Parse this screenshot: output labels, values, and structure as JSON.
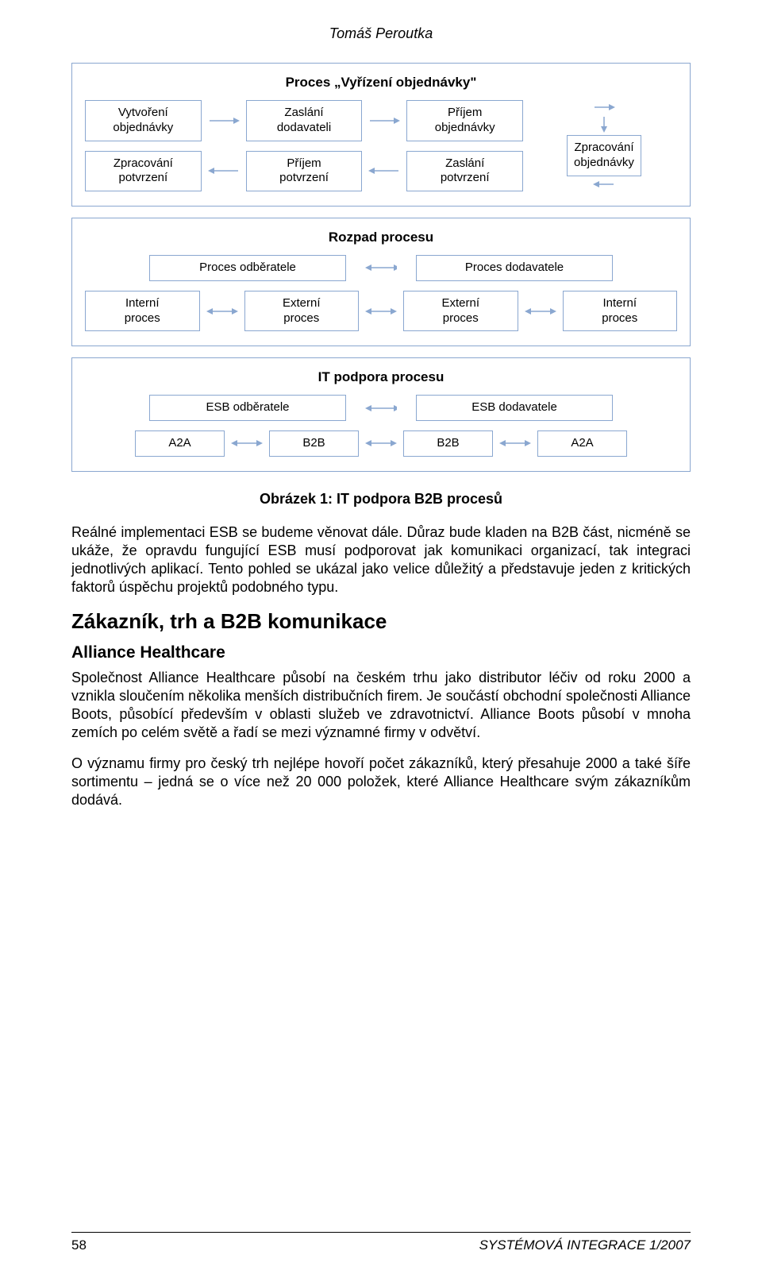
{
  "author": "Tomáš Peroutka",
  "diagram": {
    "stroke": "#8aa7d0",
    "arrow_fill": "#8aa7d0",
    "panel1": {
      "title": "Proces „Vyřízení objednávky\"",
      "row1": [
        "Vytvoření\nobjednávky",
        "Zaslání\ndodavateli",
        "Příjem\nobjednávky"
      ],
      "row2": [
        "Zpracování\npotvrzení",
        "Příjem\npotvrzení",
        "Zaslání\npotvrzení"
      ],
      "rowR": "Zpracování\nobjednávky"
    },
    "panel2": {
      "title": "Rozpad procesu",
      "row1": [
        "Proces odběratele",
        "Proces dodavatele"
      ],
      "row2": [
        "Interní\nproces",
        "Externí\nproces",
        "Externí\nproces",
        "Interní\nproces"
      ]
    },
    "panel3": {
      "title": "IT podpora procesu",
      "row1": [
        "ESB odběratele",
        "ESB dodavatele"
      ],
      "row2": [
        "A2A",
        "B2B",
        "B2B",
        "A2A"
      ]
    }
  },
  "caption": "Obrázek 1: IT podpora B2B procesů",
  "paragraphs": {
    "p1": "Reálné implementaci ESB se budeme věnovat dále. Důraz bude kladen na B2B část, nicméně se ukáže, že opravdu fungující ESB musí podporovat jak komunikaci organizací, tak integraci jednotlivých aplikací. Tento pohled se ukázal jako velice důležitý a představuje jeden z kritických faktorů úspěchu projektů podobného typu.",
    "section": "Zákazník, trh a B2B komunikace",
    "sub1": "Alliance Healthcare",
    "p2": "Společnost Alliance Healthcare působí na českém trhu jako distributor léčiv od roku 2000 a vznikla sloučením několika menších distribučních firem. Je součástí obchodní společnosti Alliance Boots, působící především v oblasti služeb ve zdravotnictví. Alliance Boots působí v mnoha zemích po celém světě a řadí se mezi významné firmy v odvětví.",
    "p3": "O významu firmy pro český trh nejlépe hovoří počet zákazníků, který přesahuje 2000 a také šíře sortimentu – jedná se o více než 20 000 položek, které Alliance Healthcare svým zákazníkům dodává."
  },
  "footer": {
    "page": "58",
    "journal": "SYSTÉMOVÁ INTEGRACE 1/2007"
  }
}
